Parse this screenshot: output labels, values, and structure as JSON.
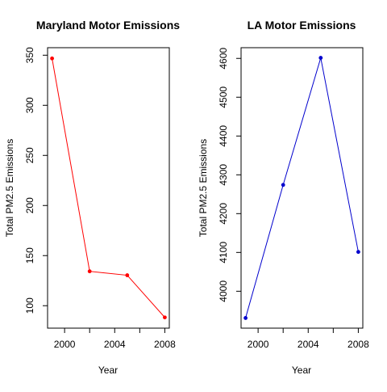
{
  "chart_data": [
    {
      "type": "line",
      "title": "Maryland Motor Emissions",
      "xlabel": "Year",
      "ylabel": "Total PM2.5 Emissions",
      "x": [
        1999,
        2002,
        2005,
        2008
      ],
      "series": [
        {
          "values": [
            346.8,
            134.3,
            130.4,
            88.3
          ],
          "color": "#ff0000"
        }
      ],
      "xlim": [
        1998.64,
        2008.36
      ],
      "ylim": [
        77.6,
        357.5
      ],
      "xticks": [
        2000,
        2004,
        2008
      ],
      "xtick_labels": [
        "2000",
        "2004",
        "2008"
      ],
      "xticks_minor": [
        2002,
        2006
      ],
      "yticks": [
        100,
        150,
        200,
        250,
        300,
        350
      ],
      "ytick_labels": [
        "100",
        "150",
        "200",
        "250",
        "300",
        "350"
      ],
      "grid": false,
      "legend": "none"
    },
    {
      "type": "line",
      "title": "LA Motor Emissions",
      "xlabel": "Year",
      "ylabel": "Total PM2.5 Emissions",
      "x": [
        1999,
        2002,
        2005,
        2008
      ],
      "series": [
        {
          "values": [
            3931.1,
            4274.0,
            4601.4,
            4101.3
          ],
          "color": "#0000cd"
        }
      ],
      "xlim": [
        1998.64,
        2008.36
      ],
      "ylim": [
        3904.9,
        4627.6
      ],
      "xticks": [
        2000,
        2004,
        2008
      ],
      "xtick_labels": [
        "2000",
        "2004",
        "2008"
      ],
      "xticks_minor": [
        2002,
        2006
      ],
      "yticks": [
        4000,
        4100,
        4200,
        4300,
        4400,
        4500,
        4600
      ],
      "ytick_labels": [
        "4000",
        "4100",
        "4200",
        "4300",
        "4400",
        "4500",
        "4600"
      ],
      "grid": false,
      "legend": "none"
    }
  ]
}
